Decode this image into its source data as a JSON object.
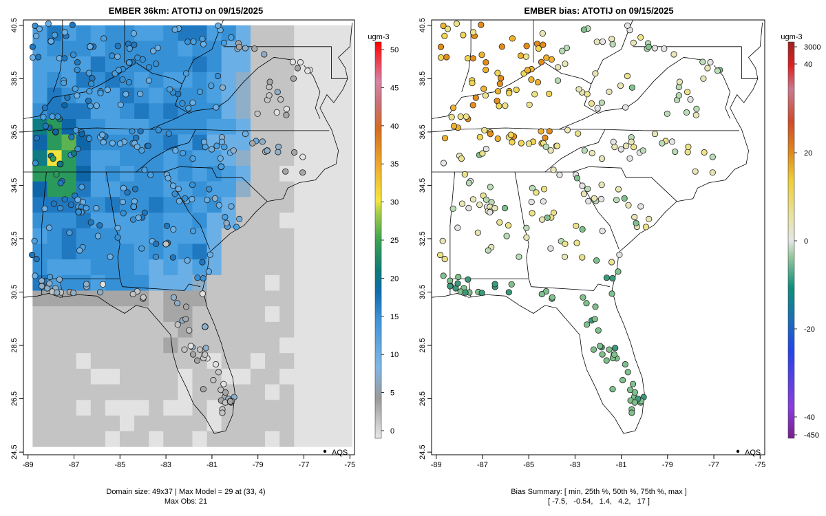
{
  "chart_data": [
    {
      "type": "heatmap",
      "title": "EMBER 36km: ATOTIJ on 09/15/2025",
      "xlabel": "",
      "ylabel": "",
      "x_ticks": [
        "-89",
        "-87",
        "-85",
        "-83",
        "-81",
        "-79",
        "-77",
        "-75"
      ],
      "y_ticks": [
        "24.5",
        "26.5",
        "28.5",
        "30.5",
        "32.5",
        "34.5",
        "36.5",
        "38.5",
        "40.5"
      ],
      "xlim": [
        -89.2,
        -74.8
      ],
      "ylim": [
        24.4,
        40.7
      ],
      "colorbar": {
        "units": "ugm-3",
        "ticks": [
          "0",
          "5",
          "10",
          "15",
          "20",
          "25",
          "30",
          "35",
          "40",
          "45",
          "50"
        ],
        "range": [
          -1,
          51
        ]
      },
      "legend": "AQS",
      "legend_position": "bottom-right",
      "footer": [
        "Domain size: 49x37 | Max Model = 29 at (33, 4)",
        "Max Obs: 21"
      ],
      "grid_lon_range": [
        -88.8,
        -74.9
      ],
      "grid_lat_range": [
        24.7,
        40.5
      ],
      "grid_cells": {
        "nx": 22,
        "ny": 27
      },
      "stations_sample": [
        {
          "lon": -88.0,
          "lat": 39.9,
          "value": 9
        },
        {
          "lon": -86.3,
          "lat": 39.7,
          "value": 10
        },
        {
          "lon": -84.6,
          "lat": 39.1,
          "value": 11
        },
        {
          "lon": -87.8,
          "lat": 36.5,
          "value": 18
        },
        {
          "lon": -87.6,
          "lat": 35.3,
          "value": 20
        },
        {
          "lon": -86.8,
          "lat": 33.5,
          "value": 14
        },
        {
          "lon": -84.4,
          "lat": 33.7,
          "value": 12
        },
        {
          "lon": -83.0,
          "lat": 32.3,
          "value": 2
        },
        {
          "lon": -81.3,
          "lat": 29.2,
          "value": 5
        },
        {
          "lon": -80.2,
          "lat": 26.4,
          "value": 3
        },
        {
          "lon": -80.6,
          "lat": 35.2,
          "value": 11
        },
        {
          "lon": -78.6,
          "lat": 35.8,
          "value": 7
        }
      ]
    },
    {
      "type": "scatter",
      "title": "EMBER bias: ATOTIJ on 09/15/2025",
      "x_ticks": [
        "-89",
        "-87",
        "-85",
        "-83",
        "-81",
        "-79",
        "-77",
        "-75"
      ],
      "y_ticks": [
        "24.5",
        "26.5",
        "28.5",
        "30.5",
        "32.5",
        "34.5",
        "36.5",
        "38.5",
        "40.5"
      ],
      "xlim": [
        -89.2,
        -74.8
      ],
      "ylim": [
        24.4,
        40.7
      ],
      "colorbar": {
        "units": "ugm-3",
        "ticks": [
          "3000",
          "40",
          "20",
          "0",
          "-20",
          "-40",
          "-450"
        ]
      },
      "legend": "AQS",
      "legend_position": "bottom-right",
      "footer": [
        "Bias Summary: [ min, 25th %, 50th %, 75th %, max ]",
        "[ -7.5,   -0.54,   1.4,   4.2,   17 ]"
      ],
      "bias_summary": {
        "min": -7.5,
        "p25": -0.54,
        "p50": 1.4,
        "p75": 4.2,
        "max": 17
      }
    }
  ]
}
